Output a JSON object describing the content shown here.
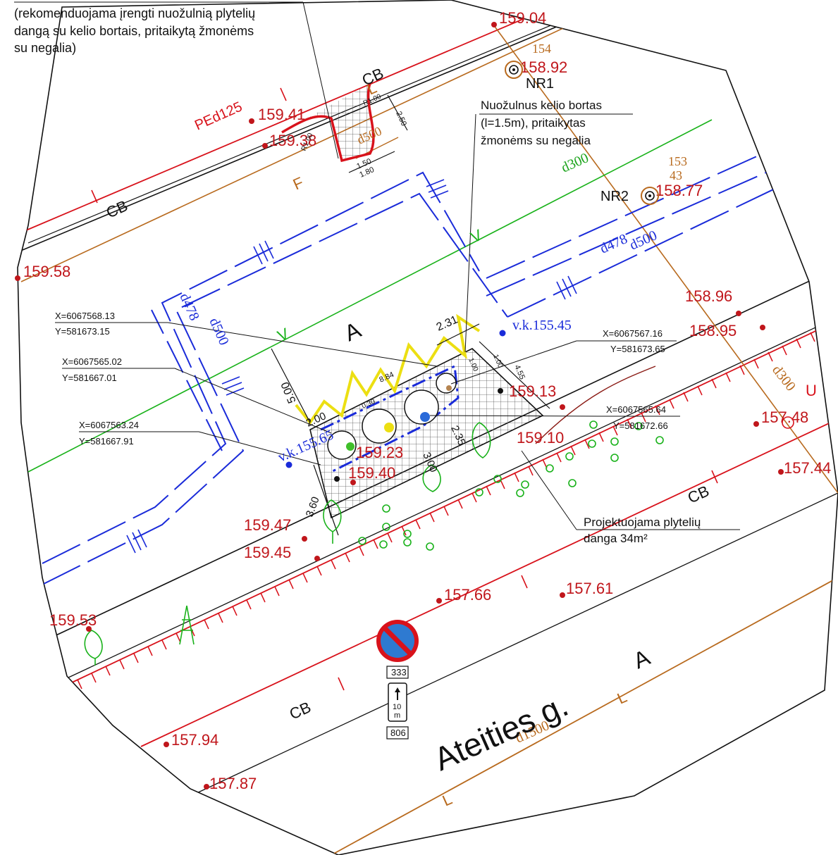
{
  "colors": {
    "red": "#d8121b",
    "brown": "#b86a1e",
    "blue": "#1a2bd9",
    "green": "#19b21a",
    "yellow": "#ecdf12",
    "black": "#111111"
  },
  "notes": {
    "top_left": [
      "(rekomenduojama įrengti nuožulnią plytelių",
      "dangą su kelio bortais, pritaikytą žmonėms",
      "su negalia)"
    ],
    "curb": [
      "Nuožulnus kelio bortas",
      "(l=1.5m), pritaikytas",
      "žmonėms su negalia"
    ],
    "paving": [
      "Projektuojama plytelių",
      "danga 34m²"
    ]
  },
  "coordinates": [
    {
      "x": "X=6067568.13",
      "y": "Y=581673.15"
    },
    {
      "x": "X=6067565.02",
      "y": "Y=581667.01"
    },
    {
      "x": "X=6067563.24",
      "y": "Y=581667.91"
    },
    {
      "x": "X=6067567.16",
      "y": "Y=581673.65"
    },
    {
      "x": "X=6067565.64",
      "y": "Y=581672.66"
    }
  ],
  "elevations": [
    "159.04",
    "158.92",
    "159.41",
    "159.38",
    "158.77",
    "159.58",
    "158.96",
    "158.95",
    "159.13",
    "159.10",
    "157.48",
    "157.44",
    "159.23",
    "159.40",
    "159.47",
    "159.45",
    "157.66",
    "157.61",
    "159.53",
    "157.94",
    "157.87"
  ],
  "wells": [
    "NR1",
    "NR2"
  ],
  "well_numbers": [
    "154",
    "153",
    "43"
  ],
  "pipes": {
    "pe": "PEd125",
    "d500a": "d500",
    "d300a": "d300",
    "d478a": "d478",
    "d500b": "d500",
    "d478b": "d478",
    "d500c": "d500",
    "d300b": "d300",
    "d1500": "d1500"
  },
  "water_wells": [
    "v.k.155.45",
    "v.k.155.65"
  ],
  "labels": {
    "cb1": "CB",
    "cb2": "CB",
    "cb3": "CB",
    "cb4": "CB",
    "zone1": "A",
    "zone2": "A",
    "f": "F",
    "l1": "L",
    "l2": "L",
    "l3": "L",
    "v1": "V",
    "v2": "V",
    "u": "U",
    "street": "Ateities g."
  },
  "dims": {
    "d150": "1.50",
    "d180": "1.80",
    "d250": "2.50",
    "r1": "R1.00",
    "r2": "R1.00",
    "d231": "2.31",
    "d500": "5.00",
    "d884": "8.84",
    "d455": "4.55",
    "d200": "2.00",
    "d360": "3.60",
    "d300": "3.00",
    "d235": "2.35",
    "d100a": "1.00",
    "d100b": "1.00",
    "d30": "0.30"
  },
  "sign": {
    "top": "333",
    "mid1": "10",
    "mid2": "m",
    "bottom": "806"
  }
}
